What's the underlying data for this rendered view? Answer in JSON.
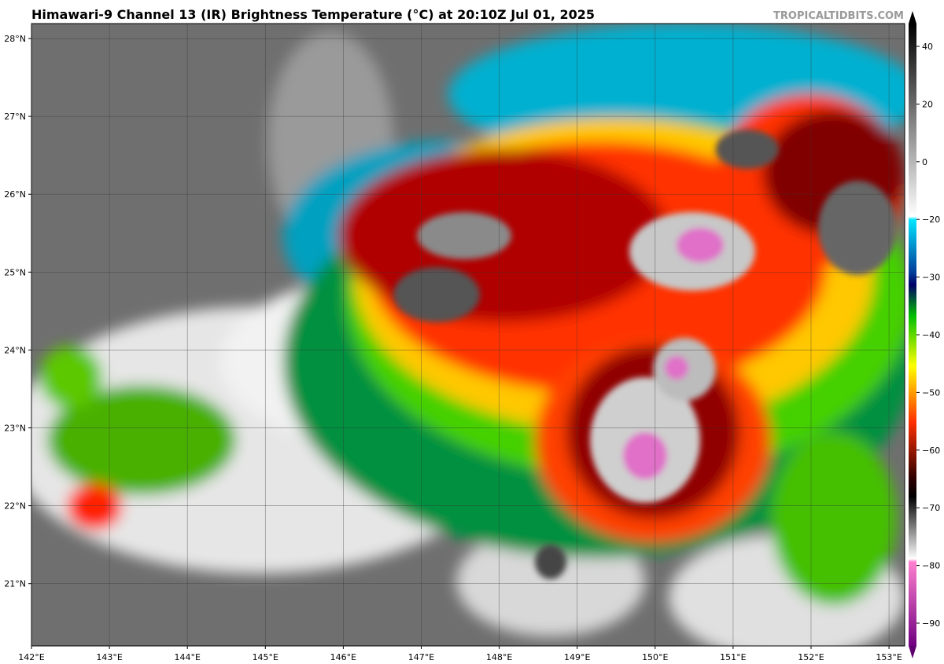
{
  "header": {
    "title": "Himawari-9 Channel 13 (IR) Brightness Temperature (°C) at 20:10Z Jul 01, 2025",
    "source": "TROPICALTIDBITS.COM"
  },
  "map": {
    "latitude_labels": [
      "28°N",
      "27°N",
      "26°N",
      "25°N",
      "24°N",
      "23°N",
      "22°N",
      "21°N"
    ],
    "longitude_labels": [
      "142°E",
      "143°E",
      "144°E",
      "145°E",
      "146°E",
      "147°E",
      "148°E",
      "149°E",
      "150°E",
      "151°E",
      "152°E",
      "153°E"
    ]
  },
  "colorbar": {
    "tick_labels": [
      "40",
      "20",
      "0",
      "−20",
      "−30",
      "−40",
      "−50",
      "−60",
      "−70",
      "−80",
      "−90"
    ]
  }
}
